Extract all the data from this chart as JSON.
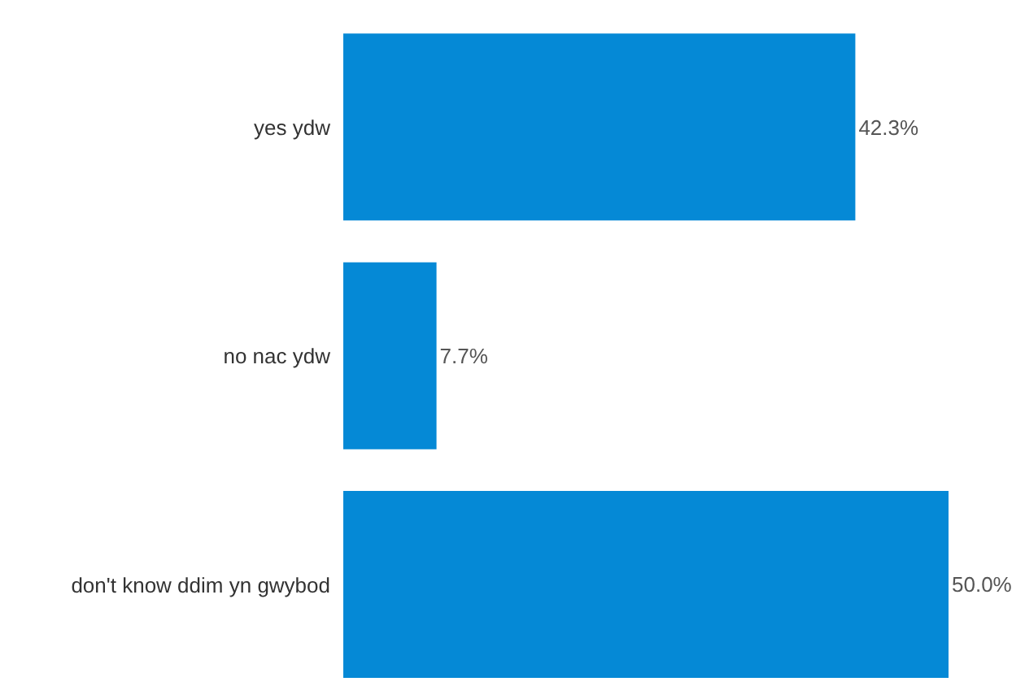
{
  "chart_data": {
    "type": "bar",
    "orientation": "horizontal",
    "categories": [
      "yes ydw",
      "no nac ydw",
      "don't know ddim yn gwybod"
    ],
    "values": [
      42.3,
      7.7,
      50.0
    ],
    "value_labels": [
      "42.3%",
      "7.7%",
      "50.0%"
    ],
    "color": "#0589d6",
    "grid": false,
    "legend": false
  }
}
